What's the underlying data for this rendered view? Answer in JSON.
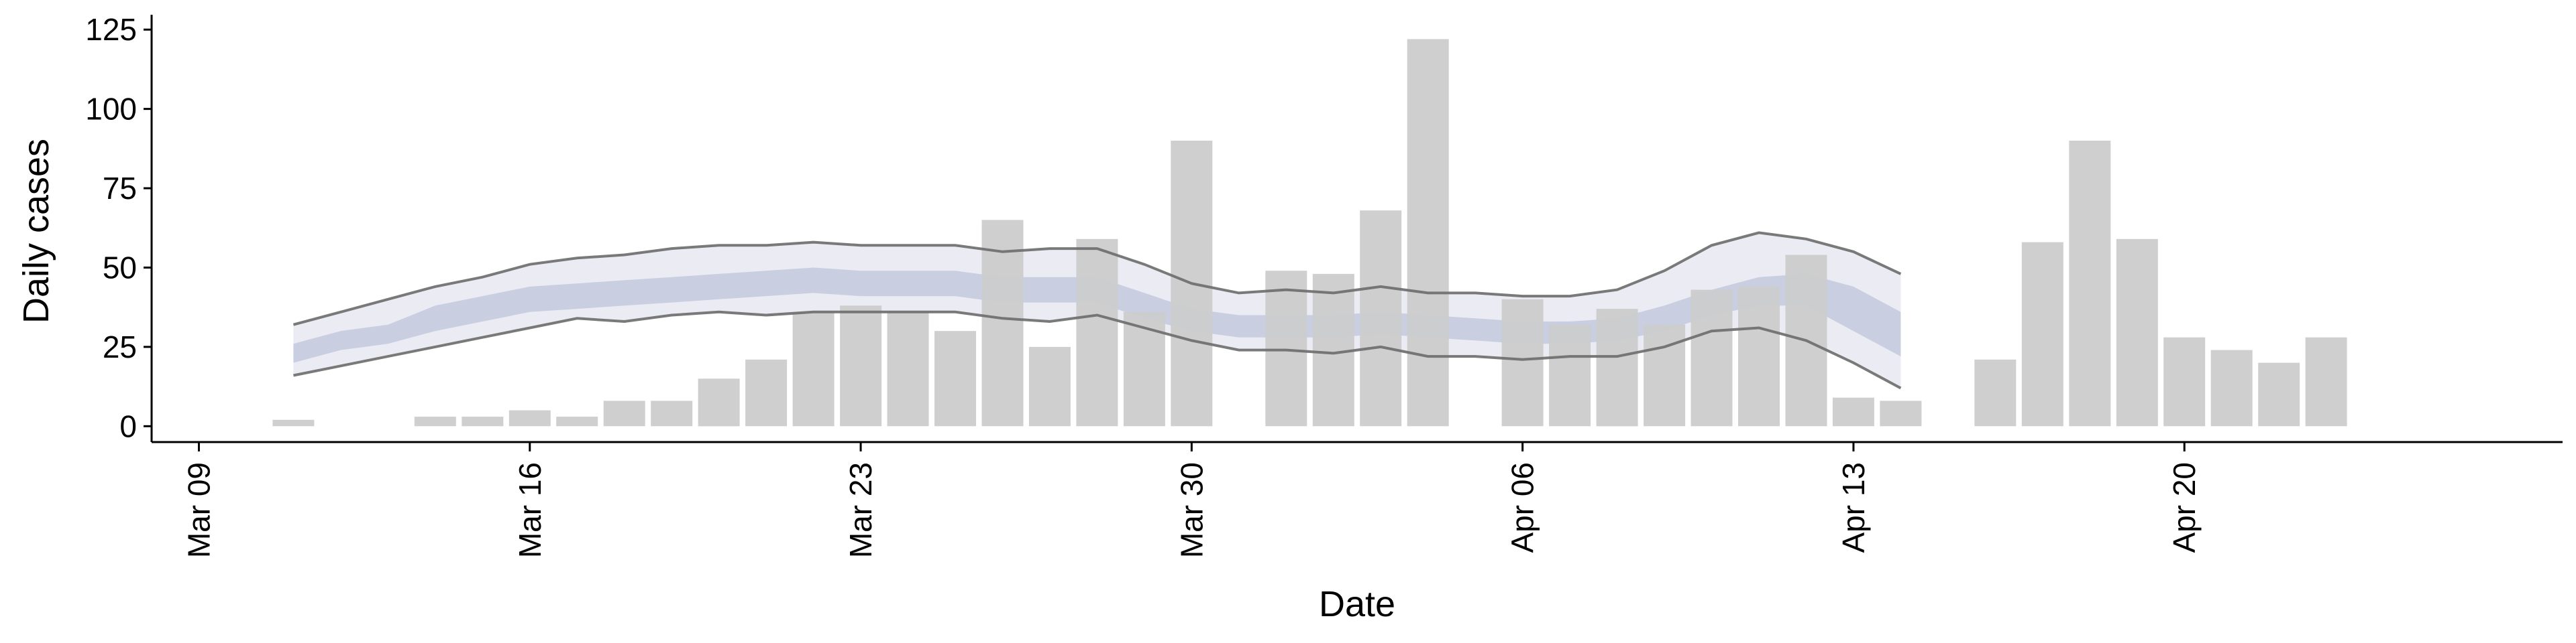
{
  "chart_data": {
    "type": "bar",
    "xlabel": "Date",
    "ylabel": "Daily cases",
    "title": "",
    "ylim": [
      -5,
      128
    ],
    "yticks": [
      0,
      25,
      50,
      75,
      100,
      125
    ],
    "xlim": [
      "2020-03-08",
      "2020-04-28"
    ],
    "xticks": [
      {
        "date": "2020-03-09",
        "label": "Mar 09"
      },
      {
        "date": "2020-03-16",
        "label": "Mar 16"
      },
      {
        "date": "2020-03-23",
        "label": "Mar 23"
      },
      {
        "date": "2020-03-30",
        "label": "Mar 30"
      },
      {
        "date": "2020-04-06",
        "label": "Apr 06"
      },
      {
        "date": "2020-04-13",
        "label": "Apr 13"
      },
      {
        "date": "2020-04-20",
        "label": "Apr 20"
      }
    ],
    "grid": false,
    "colors": {
      "bars": "#cccccc",
      "band_outer": "#e6e8f1",
      "band_inner": "#c3c9dc",
      "lines": "#6b6b6b"
    },
    "bars": {
      "dates": [
        "2020-03-11",
        "2020-03-14",
        "2020-03-15",
        "2020-03-16",
        "2020-03-17",
        "2020-03-18",
        "2020-03-19",
        "2020-03-20",
        "2020-03-21",
        "2020-03-22",
        "2020-03-23",
        "2020-03-24",
        "2020-03-25",
        "2020-03-26",
        "2020-03-27",
        "2020-03-28",
        "2020-03-29",
        "2020-03-30",
        "2020-04-01",
        "2020-04-02",
        "2020-04-03",
        "2020-04-04",
        "2020-04-06",
        "2020-04-07",
        "2020-04-08",
        "2020-04-09",
        "2020-04-10",
        "2020-04-11",
        "2020-04-12",
        "2020-04-13",
        "2020-04-14",
        "2020-04-16",
        "2020-04-17",
        "2020-04-18",
        "2020-04-19",
        "2020-04-20",
        "2020-04-21",
        "2020-04-22",
        "2020-04-23"
      ],
      "values": [
        2,
        3,
        3,
        5,
        3,
        8,
        8,
        15,
        21,
        36,
        38,
        36,
        30,
        65,
        25,
        59,
        36,
        90,
        49,
        48,
        68,
        122,
        40,
        32,
        37,
        32,
        43,
        44,
        54,
        9,
        8,
        21,
        58,
        90,
        59,
        28,
        24,
        20,
        28
      ]
    },
    "estimate": {
      "dates": [
        "2020-03-11",
        "2020-03-12",
        "2020-03-13",
        "2020-03-14",
        "2020-03-15",
        "2020-03-16",
        "2020-03-17",
        "2020-03-18",
        "2020-03-19",
        "2020-03-20",
        "2020-03-21",
        "2020-03-22",
        "2020-03-23",
        "2020-03-24",
        "2020-03-25",
        "2020-03-26",
        "2020-03-27",
        "2020-03-28",
        "2020-03-29",
        "2020-03-30",
        "2020-03-31",
        "2020-04-01",
        "2020-04-02",
        "2020-04-03",
        "2020-04-04",
        "2020-04-05",
        "2020-04-06",
        "2020-04-07",
        "2020-04-08",
        "2020-04-09",
        "2020-04-10",
        "2020-04-11",
        "2020-04-12",
        "2020-04-13",
        "2020-04-14"
      ],
      "upper90": [
        32,
        36,
        40,
        44,
        47,
        51,
        53,
        54,
        56,
        57,
        57,
        58,
        57,
        57,
        57,
        55,
        56,
        56,
        51,
        45,
        42,
        43,
        42,
        44,
        42,
        42,
        41,
        41,
        43,
        49,
        57,
        61,
        59,
        55,
        48
      ],
      "upper50": [
        26,
        30,
        32,
        38,
        41,
        44,
        45,
        46,
        47,
        48,
        49,
        50,
        49,
        49,
        49,
        47,
        47,
        47,
        42,
        37,
        35,
        35,
        35,
        36,
        35,
        34,
        33,
        33,
        34,
        38,
        43,
        47,
        48,
        44,
        36
      ],
      "lower50": [
        20,
        24,
        26,
        30,
        33,
        36,
        37,
        38,
        39,
        40,
        41,
        42,
        41,
        41,
        41,
        39,
        39,
        39,
        34,
        30,
        28,
        28,
        28,
        29,
        28,
        27,
        26,
        26,
        27,
        30,
        35,
        38,
        38,
        30,
        22
      ],
      "lower90": [
        16,
        19,
        22,
        25,
        28,
        31,
        34,
        33,
        35,
        36,
        35,
        36,
        36,
        36,
        36,
        34,
        33,
        35,
        31,
        27,
        24,
        24,
        23,
        25,
        22,
        22,
        21,
        22,
        22,
        25,
        30,
        31,
        27,
        20,
        12
      ]
    }
  }
}
